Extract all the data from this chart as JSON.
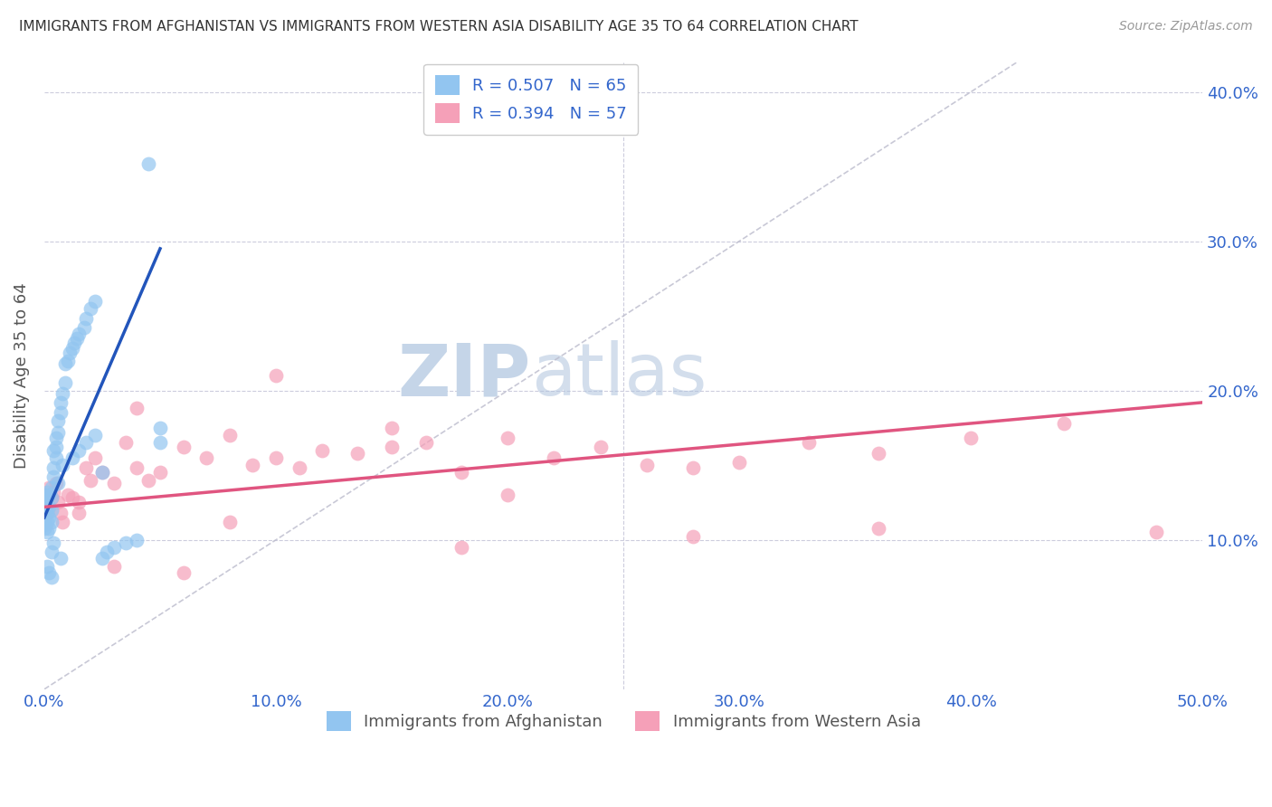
{
  "title": "IMMIGRANTS FROM AFGHANISTAN VS IMMIGRANTS FROM WESTERN ASIA DISABILITY AGE 35 TO 64 CORRELATION CHART",
  "source": "Source: ZipAtlas.com",
  "xlabel_label": "Immigrants from Afghanistan",
  "ylabel_label": "Disability Age 35 to 64",
  "xlabel2_label": "Immigrants from Western Asia",
  "xmin": 0.0,
  "xmax": 0.5,
  "ymin": 0.0,
  "ymax": 0.42,
  "r_afghanistan": 0.507,
  "n_afghanistan": 65,
  "r_western_asia": 0.394,
  "n_western_asia": 57,
  "color_afghanistan": "#92C5F0",
  "color_western_asia": "#F5A0B8",
  "line_color_afghanistan": "#2255BB",
  "line_color_western_asia": "#E05580",
  "diagonal_color": "#BBBBCC",
  "background_color": "#FFFFFF",
  "grid_color": "#CCCCDD",
  "title_color": "#333333",
  "source_color": "#999999",
  "axis_label_color": "#555555",
  "tick_label_color": "#3366CC",
  "legend_text_color": "#3366CC",
  "watermark_zip": "ZIP",
  "watermark_atlas": "atlas",
  "watermark_color": "#C5D5E8",
  "afg_line_x0": 0.0,
  "afg_line_y0": 0.115,
  "afg_line_x1": 0.05,
  "afg_line_y1": 0.295,
  "wasi_line_x0": 0.0,
  "wasi_line_y0": 0.122,
  "wasi_line_x1": 0.5,
  "wasi_line_y1": 0.192,
  "afg_points_x": [
    0.0,
    0.0,
    0.0,
    0.0,
    0.0,
    0.0,
    0.0,
    0.001,
    0.001,
    0.001,
    0.001,
    0.001,
    0.001,
    0.002,
    0.002,
    0.002,
    0.002,
    0.003,
    0.003,
    0.003,
    0.003,
    0.004,
    0.004,
    0.004,
    0.005,
    0.005,
    0.005,
    0.006,
    0.006,
    0.007,
    0.007,
    0.008,
    0.009,
    0.009,
    0.01,
    0.011,
    0.012,
    0.013,
    0.014,
    0.015,
    0.017,
    0.018,
    0.02,
    0.022,
    0.025,
    0.027,
    0.03,
    0.035,
    0.04,
    0.045,
    0.05,
    0.05,
    0.012,
    0.015,
    0.018,
    0.022,
    0.025,
    0.008,
    0.006,
    0.004,
    0.003,
    0.002,
    0.001,
    0.007,
    0.003
  ],
  "afg_points_y": [
    0.115,
    0.12,
    0.125,
    0.11,
    0.13,
    0.118,
    0.108,
    0.112,
    0.118,
    0.122,
    0.128,
    0.105,
    0.132,
    0.115,
    0.108,
    0.122,
    0.13,
    0.112,
    0.12,
    0.128,
    0.135,
    0.142,
    0.148,
    0.16,
    0.155,
    0.162,
    0.168,
    0.172,
    0.18,
    0.185,
    0.192,
    0.198,
    0.205,
    0.218,
    0.22,
    0.225,
    0.228,
    0.232,
    0.235,
    0.238,
    0.242,
    0.248,
    0.255,
    0.26,
    0.088,
    0.092,
    0.095,
    0.098,
    0.1,
    0.352,
    0.165,
    0.175,
    0.155,
    0.16,
    0.165,
    0.17,
    0.145,
    0.15,
    0.138,
    0.098,
    0.092,
    0.078,
    0.082,
    0.088,
    0.075
  ],
  "wasi_points_x": [
    0.0,
    0.0,
    0.001,
    0.001,
    0.002,
    0.002,
    0.003,
    0.004,
    0.005,
    0.006,
    0.007,
    0.008,
    0.01,
    0.012,
    0.015,
    0.018,
    0.02,
    0.022,
    0.025,
    0.03,
    0.035,
    0.04,
    0.045,
    0.05,
    0.06,
    0.07,
    0.08,
    0.09,
    0.1,
    0.11,
    0.12,
    0.135,
    0.15,
    0.165,
    0.18,
    0.2,
    0.22,
    0.24,
    0.26,
    0.28,
    0.3,
    0.33,
    0.36,
    0.4,
    0.44,
    0.48,
    0.36,
    0.28,
    0.2,
    0.15,
    0.1,
    0.06,
    0.03,
    0.015,
    0.08,
    0.04,
    0.18
  ],
  "wasi_points_y": [
    0.125,
    0.13,
    0.118,
    0.128,
    0.122,
    0.135,
    0.128,
    0.132,
    0.138,
    0.125,
    0.118,
    0.112,
    0.13,
    0.128,
    0.125,
    0.148,
    0.14,
    0.155,
    0.145,
    0.138,
    0.165,
    0.148,
    0.14,
    0.145,
    0.162,
    0.155,
    0.17,
    0.15,
    0.155,
    0.148,
    0.16,
    0.158,
    0.162,
    0.165,
    0.095,
    0.168,
    0.155,
    0.162,
    0.15,
    0.148,
    0.152,
    0.165,
    0.158,
    0.168,
    0.178,
    0.105,
    0.108,
    0.102,
    0.13,
    0.175,
    0.21,
    0.078,
    0.082,
    0.118,
    0.112,
    0.188,
    0.145
  ]
}
